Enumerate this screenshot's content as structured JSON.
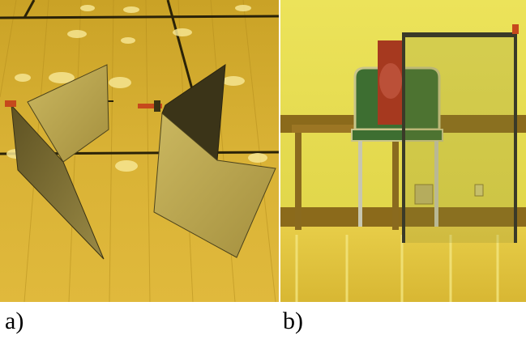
{
  "panels": [
    {
      "caption": "a)",
      "scene": "gym-floor-with-mirror-panels",
      "colors": {
        "floor": "#d2a92a",
        "floor_light": "#f0d86a",
        "line": "#2a2208",
        "mirror": "#8d7d3c",
        "clamp": "#c6491c"
      }
    },
    {
      "caption": "b)",
      "scene": "mirror-reflection-chair-table",
      "colors": {
        "wall": "#e6de4c",
        "baseboard": "#8b6a1b",
        "floor": "#e3c640",
        "chair": "#3d6e31",
        "bag": "#a6391f",
        "frame": "#3a3a28"
      }
    }
  ]
}
